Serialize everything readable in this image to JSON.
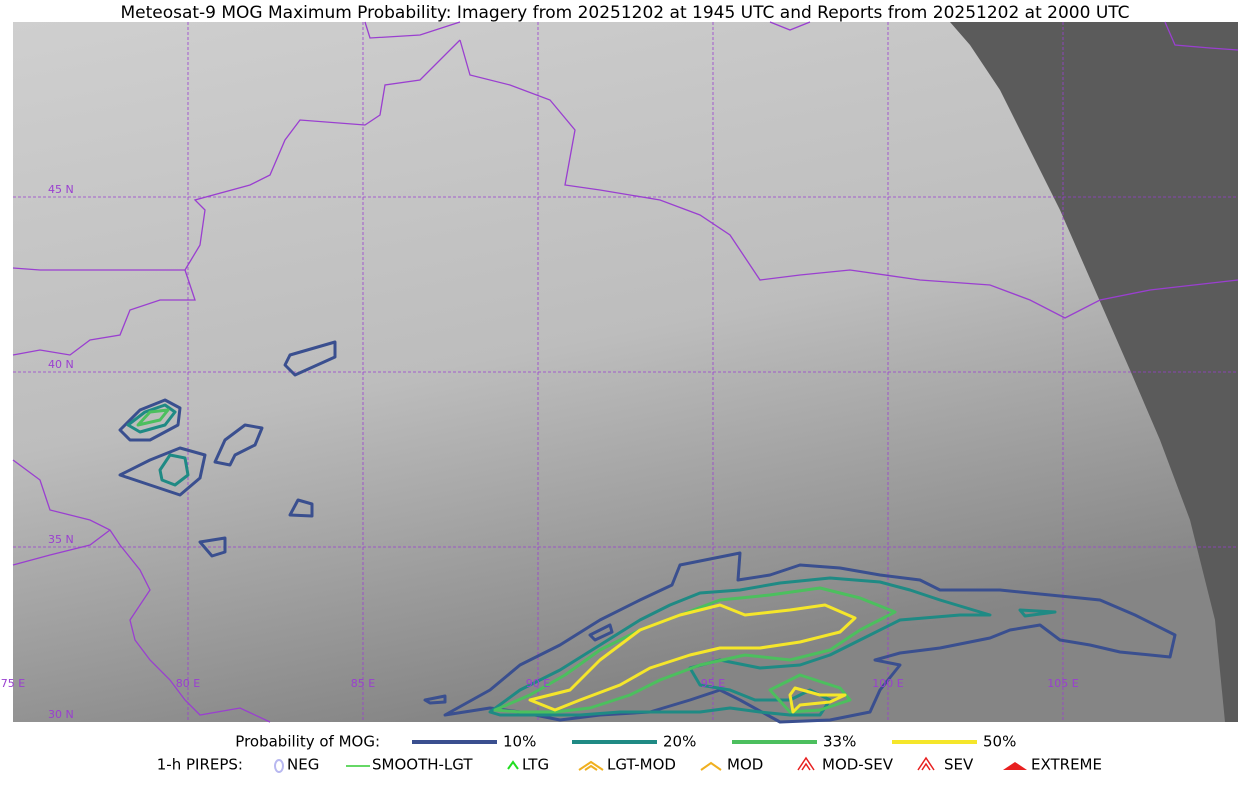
{
  "title": "Meteosat-9 MOG Maximum Probability: Imagery from 20251202 at 1945 UTC and Reports from 20251202 at 2000 UTC",
  "map": {
    "lat_labels": [
      "45 N",
      "40 N",
      "35 N",
      "30 N"
    ],
    "lon_labels": [
      "75 E",
      "80 E",
      "85 E",
      "90 E",
      "95 E",
      "100 E",
      "105 E"
    ]
  },
  "legend": {
    "probability_title": "Probability of MOG:",
    "probability_items": [
      {
        "label": "10%",
        "color": "#3a4f8f"
      },
      {
        "label": "20%",
        "color": "#1f8a84"
      },
      {
        "label": "33%",
        "color": "#4cbf5e"
      },
      {
        "label": "50%",
        "color": "#f5e62a"
      }
    ],
    "pireps_title": "1-h PIREPS:",
    "pireps_items": [
      {
        "label": "NEG",
        "color": "#b8b8f0"
      },
      {
        "label": "SMOOTH-LGT",
        "color": "#33cc33"
      },
      {
        "label": "LTG",
        "color": "#22dd22"
      },
      {
        "label": "LGT-MOD",
        "color": "#f0b020"
      },
      {
        "label": "MOD",
        "color": "#f0b020"
      },
      {
        "label": "MOD-SEV",
        "color": "#e82020"
      },
      {
        "label": "SEV",
        "color": "#e82020"
      },
      {
        "label": "EXTREME",
        "color": "#e82020"
      }
    ]
  }
}
